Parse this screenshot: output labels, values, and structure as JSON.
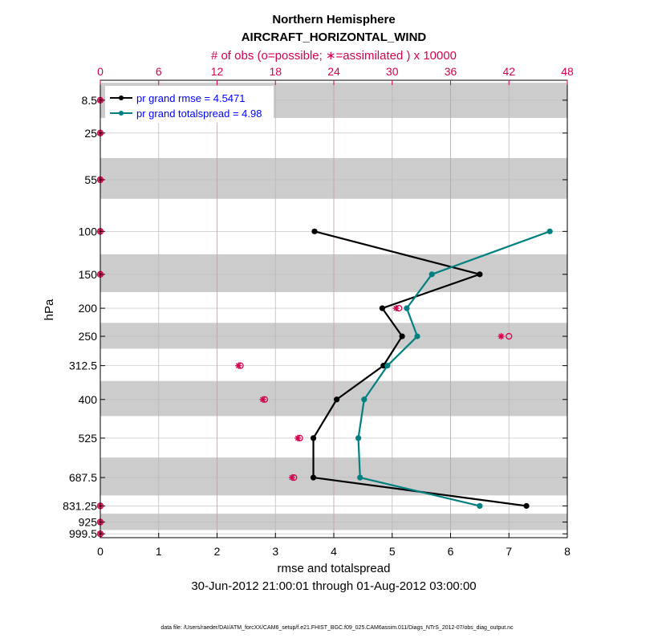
{
  "chart_data": {
    "type": "line",
    "title": "Northern Hemisphere",
    "subtitle": "AIRCRAFT_HORIZONTAL_WIND",
    "top_axis_label": "# of obs (o=possible; ∗=assimilated ) x 10000",
    "top_ticks": [
      "0",
      "6",
      "12",
      "18",
      "24",
      "30",
      "36",
      "42",
      "48"
    ],
    "top_xlim": [
      0,
      48
    ],
    "xlabel": "rmse and totalspread",
    "ylabel": "hPa",
    "date_range": "30-Jun-2012 21:00:01 through 01-Aug-2012 03:00:00",
    "x_ticks": [
      "0",
      "1",
      "2",
      "3",
      "4",
      "5",
      "6",
      "7",
      "8"
    ],
    "xlim": [
      0,
      8
    ],
    "y_scale": "log",
    "ylim": [
      1025,
      0
    ],
    "y_ticks": [
      "8.5",
      "25",
      "55",
      "100",
      "150",
      "200",
      "250",
      "312.5",
      "400",
      "525",
      "687.5",
      "831.25",
      "925",
      "999.5"
    ],
    "levels": [
      8.5,
      25,
      55,
      100,
      150,
      200,
      250,
      312.5,
      400,
      525,
      687.5,
      831.25,
      925,
      999.5
    ],
    "shaded_bands": [
      [
        1,
        17
      ],
      [
        40,
        70
      ],
      [
        125,
        175
      ],
      [
        225,
        275
      ],
      [
        350,
        450
      ],
      [
        600,
        775
      ],
      [
        875,
        975
      ]
    ],
    "grid": true,
    "legend_placement": "top-left",
    "series": [
      {
        "name": "pr grand rmse = 4.5471",
        "color": "#000000",
        "levels": [
          100,
          150,
          200,
          250,
          312.5,
          400,
          525,
          687.5,
          831.25
        ],
        "values": [
          3.67,
          6.5,
          4.83,
          5.17,
          4.85,
          4.05,
          3.65,
          3.65,
          7.3
        ]
      },
      {
        "name": "pr grand totalspread = 4.98",
        "color": "#008080",
        "levels": [
          100,
          150,
          200,
          250,
          312.5,
          400,
          525,
          687.5,
          831.25
        ],
        "values": [
          7.7,
          5.68,
          5.25,
          5.43,
          4.92,
          4.52,
          4.42,
          4.45,
          6.5
        ]
      }
    ],
    "obs_counts": {
      "levels": [
        8.5,
        25,
        55,
        100,
        150,
        200,
        250,
        312.5,
        400,
        525,
        687.5,
        831.25,
        925,
        999.5
      ],
      "possible": [
        0,
        0,
        0,
        0,
        0,
        30.7,
        42.0,
        14.4,
        16.9,
        20.5,
        19.9,
        0,
        0,
        0
      ],
      "assimilated": [
        0,
        0,
        0,
        0,
        0,
        30.4,
        41.2,
        14.2,
        16.7,
        20.3,
        19.7,
        0,
        0,
        0
      ],
      "color": "#d6004f"
    }
  },
  "footer": "data file: /Users/raeder/DAI/ATM_forcXX/CAM6_setup/f.e21.FHIST_BGC.f09_025.CAM6assim.011/Diags_NTrS_2012-07/obs_diag_output.nc"
}
